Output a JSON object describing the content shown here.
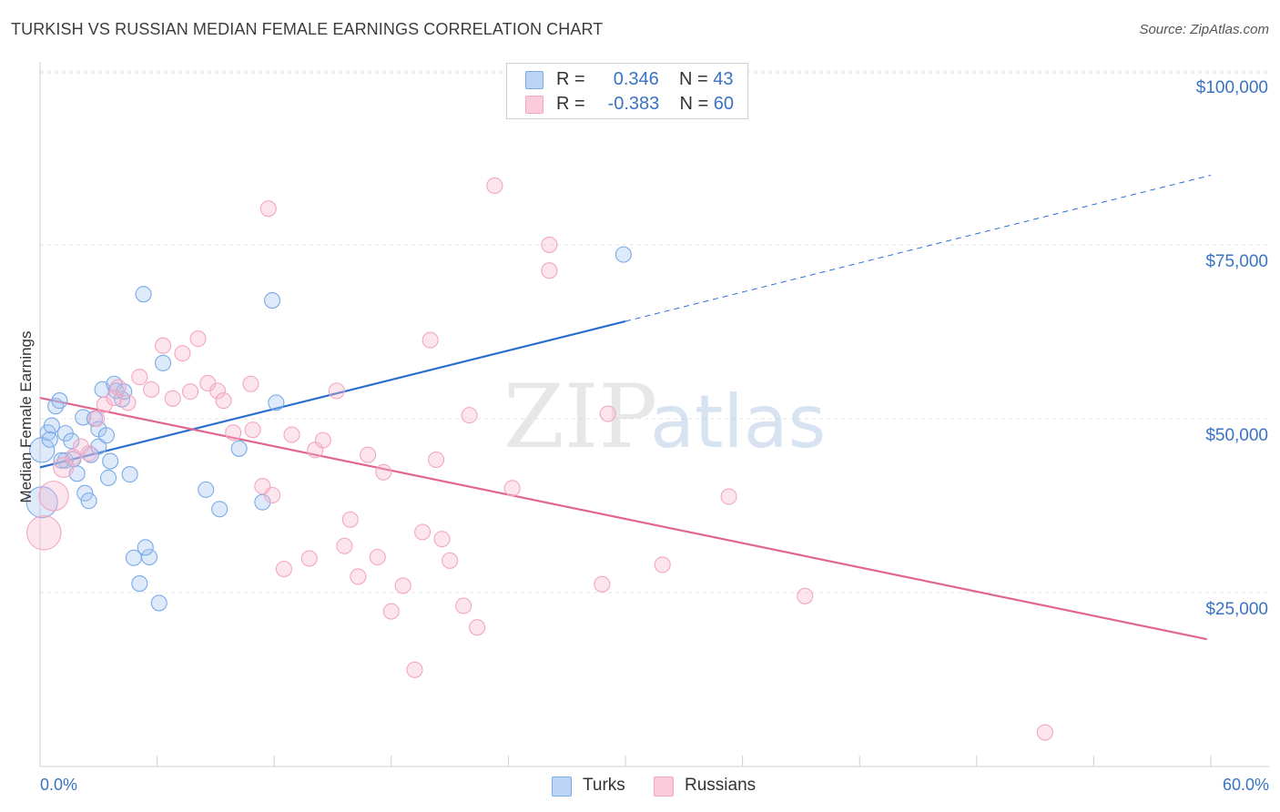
{
  "title": "TURKISH VS RUSSIAN MEDIAN FEMALE EARNINGS CORRELATION CHART",
  "source": "Source: ZipAtlas.com",
  "watermark": {
    "zip": "ZIP",
    "atlas": "atlas"
  },
  "legend": {
    "r_label": "R =",
    "n_label": "N =",
    "rows": [
      {
        "r": "0.346",
        "n": "43"
      },
      {
        "r": "-0.383",
        "n": "60"
      }
    ]
  },
  "bottom_legend": [
    "Turks",
    "Russians"
  ],
  "chart_data": {
    "type": "scatter",
    "title": "TURKISH VS RUSSIAN MEDIAN FEMALE EARNINGS CORRELATION CHART",
    "xlabel": "",
    "ylabel": "Median Female Earnings",
    "xlim": [
      0,
      60
    ],
    "ylim": [
      0,
      105000
    ],
    "x_tick_labels": [
      "0.0%",
      "60.0%"
    ],
    "y_ticks": [
      {
        "value": 25000,
        "label": "$25,000"
      },
      {
        "value": 50000,
        "label": "$50,000"
      },
      {
        "value": 75000,
        "label": "$75,000"
      },
      {
        "value": 100000,
        "label": "$100,000"
      }
    ],
    "series": [
      {
        "name": "Turks",
        "color": "#7aaae8",
        "line_color": "#2a6fce",
        "r": 0.346,
        "n": 43,
        "trend": {
          "x0": 0,
          "y0": 43000,
          "x1": 30,
          "y1": 64000,
          "x_ext": 60,
          "y_ext": 85000
        },
        "points": [
          [
            0.1,
            38000,
            2.0
          ],
          [
            0.1,
            45500,
            1.6
          ],
          [
            0.4,
            48000,
            1.0
          ],
          [
            0.6,
            49000,
            1.0
          ],
          [
            0.8,
            51800,
            1.0
          ],
          [
            1.0,
            52600,
            1.0
          ],
          [
            1.3,
            44000,
            1.0
          ],
          [
            1.3,
            47900,
            1.0
          ],
          [
            1.6,
            46800,
            1.0
          ],
          [
            1.7,
            44200,
            1.0
          ],
          [
            1.9,
            42100,
            1.0
          ],
          [
            2.2,
            50200,
            1.0
          ],
          [
            2.3,
            39300,
            1.0
          ],
          [
            2.5,
            38200,
            1.0
          ],
          [
            2.6,
            44800,
            1.0
          ],
          [
            2.8,
            50000,
            1.0
          ],
          [
            3.0,
            48500,
            1.0
          ],
          [
            3.0,
            46000,
            1.0
          ],
          [
            3.2,
            54200,
            1.0
          ],
          [
            3.4,
            47600,
            1.0
          ],
          [
            3.6,
            43900,
            1.0
          ],
          [
            3.8,
            55000,
            1.0
          ],
          [
            3.9,
            54000,
            1.0
          ],
          [
            4.2,
            52800,
            1.0
          ],
          [
            4.3,
            53900,
            1.0
          ],
          [
            4.6,
            42000,
            1.0
          ],
          [
            4.8,
            30000,
            1.0
          ],
          [
            5.1,
            26300,
            1.0
          ],
          [
            5.3,
            67900,
            1.0
          ],
          [
            5.6,
            30100,
            1.0
          ],
          [
            5.4,
            31500,
            1.0
          ],
          [
            6.1,
            23500,
            1.0
          ],
          [
            6.3,
            58000,
            1.0
          ],
          [
            8.5,
            39800,
            1.0
          ],
          [
            9.2,
            37000,
            1.0
          ],
          [
            10.2,
            45700,
            1.0
          ],
          [
            11.4,
            38000,
            1.0
          ],
          [
            11.9,
            67000,
            1.0
          ],
          [
            12.1,
            52300,
            1.0
          ],
          [
            0.5,
            47000,
            1.0
          ],
          [
            1.1,
            44000,
            1.0
          ],
          [
            3.5,
            41500,
            1.0
          ],
          [
            29.9,
            73600,
            1.0
          ]
        ]
      },
      {
        "name": "Russians",
        "color": "#f3a6c0",
        "line_color": "#e0668f",
        "r": -0.383,
        "n": 60,
        "trend": {
          "x0": 0,
          "y0": 53000,
          "x1": 59.8,
          "y1": 18300
        },
        "points": [
          [
            0.2,
            33600,
            2.2
          ],
          [
            0.7,
            38900,
            1.9
          ],
          [
            1.2,
            43000,
            1.3
          ],
          [
            1.7,
            44500,
            1.0
          ],
          [
            2.1,
            46000,
            1.0
          ],
          [
            2.5,
            45000,
            1.0
          ],
          [
            2.9,
            50000,
            1.0
          ],
          [
            3.3,
            52000,
            1.0
          ],
          [
            3.8,
            53000,
            1.0
          ],
          [
            4.0,
            54500,
            1.0
          ],
          [
            4.5,
            52300,
            1.0
          ],
          [
            5.1,
            56000,
            1.0
          ],
          [
            5.7,
            54200,
            1.0
          ],
          [
            6.3,
            60500,
            1.0
          ],
          [
            6.8,
            52900,
            1.0
          ],
          [
            7.3,
            59400,
            1.0
          ],
          [
            7.7,
            53900,
            1.0
          ],
          [
            8.1,
            61500,
            1.0
          ],
          [
            8.6,
            55100,
            1.0
          ],
          [
            9.1,
            54000,
            1.0
          ],
          [
            9.4,
            52600,
            1.0
          ],
          [
            9.9,
            48000,
            1.0
          ],
          [
            10.8,
            55000,
            1.0
          ],
          [
            10.9,
            48400,
            1.0
          ],
          [
            11.4,
            40300,
            1.0
          ],
          [
            11.9,
            39000,
            1.0
          ],
          [
            11.7,
            80200,
            1.0
          ],
          [
            12.5,
            28400,
            1.0
          ],
          [
            12.9,
            47700,
            1.0
          ],
          [
            13.8,
            29900,
            1.0
          ],
          [
            14.1,
            45500,
            1.0
          ],
          [
            14.5,
            46900,
            1.0
          ],
          [
            15.2,
            54000,
            1.0
          ],
          [
            15.6,
            31700,
            1.0
          ],
          [
            15.9,
            35500,
            1.0
          ],
          [
            16.3,
            27300,
            1.0
          ],
          [
            16.8,
            44800,
            1.0
          ],
          [
            17.3,
            30100,
            1.0
          ],
          [
            17.6,
            42300,
            1.0
          ],
          [
            18.0,
            22300,
            1.0
          ],
          [
            18.6,
            26000,
            1.0
          ],
          [
            19.2,
            13900,
            1.0
          ],
          [
            19.6,
            33700,
            1.0
          ],
          [
            20.0,
            61300,
            1.0
          ],
          [
            20.3,
            44100,
            1.0
          ],
          [
            20.6,
            32700,
            1.0
          ],
          [
            21.0,
            29600,
            1.0
          ],
          [
            21.7,
            23100,
            1.0
          ],
          [
            22.0,
            50500,
            1.0
          ],
          [
            22.4,
            20000,
            1.0
          ],
          [
            23.3,
            83500,
            1.0
          ],
          [
            24.2,
            40000,
            1.0
          ],
          [
            26.1,
            75000,
            1.0
          ],
          [
            26.1,
            71300,
            1.0
          ],
          [
            28.8,
            26200,
            1.0
          ],
          [
            29.1,
            50700,
            1.0
          ],
          [
            31.9,
            29000,
            1.0
          ],
          [
            35.3,
            38800,
            1.0
          ],
          [
            39.2,
            24500,
            1.0
          ],
          [
            51.5,
            4900,
            1.0
          ]
        ]
      }
    ]
  }
}
